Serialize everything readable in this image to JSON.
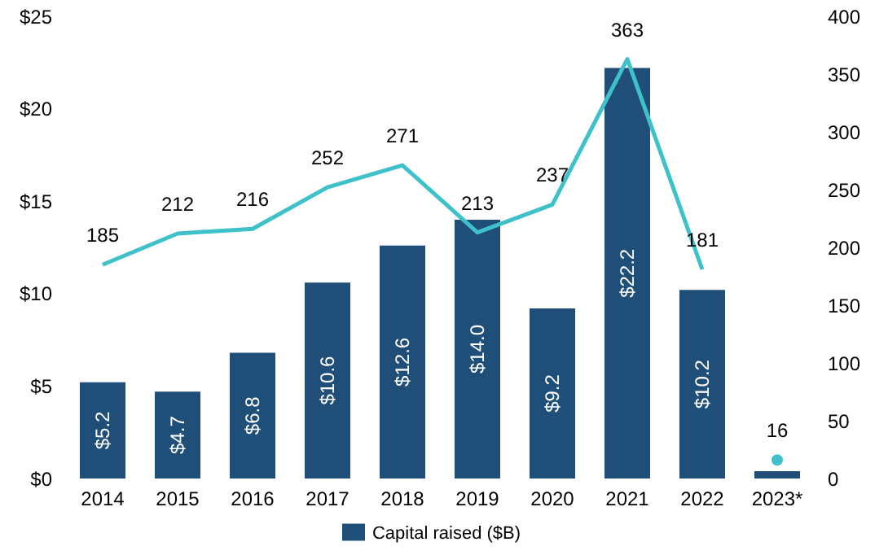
{
  "chart_data": {
    "type": "bar",
    "categories": [
      "2014",
      "2015",
      "2016",
      "2017",
      "2018",
      "2019",
      "2020",
      "2021",
      "2022",
      "2023*"
    ],
    "series": [
      {
        "name": "Capital raised ($B)",
        "color": "#1f4e79",
        "values": [
          5.2,
          4.7,
          6.8,
          10.6,
          12.6,
          14.0,
          9.2,
          22.2,
          10.2,
          0.4
        ],
        "value_labels": [
          "$5.2",
          "$4.7",
          "$6.8",
          "$10.6",
          "$12.6",
          "$14.0",
          "$9.2",
          "$22.2",
          "$10.2",
          null
        ]
      },
      {
        "type": "line",
        "axis": "y2",
        "color": "#3fc1c9",
        "values": [
          185,
          212,
          216,
          252,
          271,
          213,
          237,
          363,
          181,
          null
        ],
        "value_labels": [
          "185",
          "212",
          "216",
          "252",
          "271",
          "213",
          "237",
          "363",
          "181",
          null
        ]
      },
      {
        "type": "scatter",
        "axis": "y2",
        "color": "#3fc1c9",
        "marker": "circle",
        "values": [
          null,
          null,
          null,
          null,
          null,
          null,
          null,
          null,
          null,
          16
        ],
        "value_labels": [
          null,
          null,
          null,
          null,
          null,
          null,
          null,
          null,
          null,
          "16"
        ]
      }
    ],
    "ylim": [
      0,
      25
    ],
    "yticks": [
      {
        "value": 0,
        "label": "$0"
      },
      {
        "value": 5,
        "label": "$5"
      },
      {
        "value": 10,
        "label": "$10"
      },
      {
        "value": 15,
        "label": "$15"
      },
      {
        "value": 20,
        "label": "$20"
      },
      {
        "value": 25,
        "label": "$25"
      }
    ],
    "y2lim": [
      0,
      400
    ],
    "y2ticks": [
      0,
      50,
      100,
      150,
      200,
      250,
      300,
      350,
      400
    ],
    "legend": "bottom",
    "grid": false,
    "marker": "none",
    "line_style": "solid"
  }
}
